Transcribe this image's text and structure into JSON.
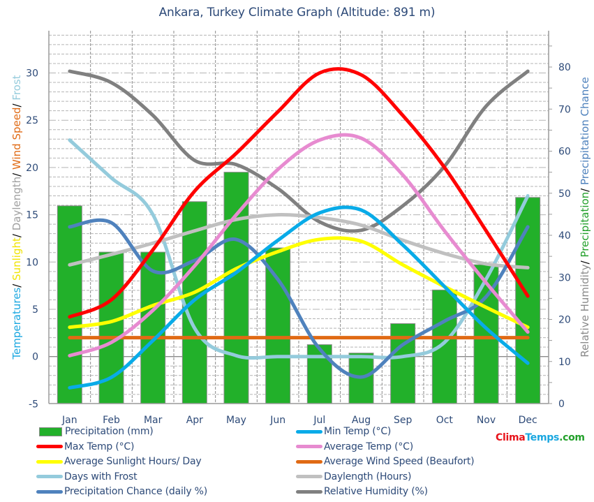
{
  "title": "Ankara, Turkey Climate Graph (Altitude: 891 m)",
  "logo": {
    "part1": "Clima",
    "part2": "Temps",
    "part3": ".com",
    "color1": "#e8141c",
    "color2": "#1aa7e0",
    "color3": "#22a02a"
  },
  "axes": {
    "left_title_parts": [
      {
        "text": "Temperatures",
        "color": "#1aa7e0"
      },
      {
        "text": "/ ",
        "color": "#000000"
      },
      {
        "text": "Sunlight",
        "color": "#f0e400"
      },
      {
        "text": "/ ",
        "color": "#000000"
      },
      {
        "text": "Daylength",
        "color": "#a0a0a0"
      },
      {
        "text": "/ ",
        "color": "#000000"
      },
      {
        "text": "Wind Speed",
        "color": "#e06a14"
      },
      {
        "text": "/ ",
        "color": "#000000"
      },
      {
        "text": "Frost",
        "color": "#94cbdc"
      }
    ],
    "right_title_parts": [
      {
        "text": "Relative Humidity",
        "color": "#8a8a8a"
      },
      {
        "text": "/ ",
        "color": "#000000"
      },
      {
        "text": "Precipitation",
        "color": "#22a02a"
      },
      {
        "text": "/ ",
        "color": "#000000"
      },
      {
        "text": "Precipitation Chance",
        "color": "#4f82bd"
      }
    ],
    "left_ticks": [
      "-5",
      "0",
      "5",
      "10",
      "15",
      "20",
      "25",
      "30"
    ],
    "right_ticks": [
      "0",
      "10",
      "20",
      "30",
      "40",
      "50",
      "60",
      "70",
      "80"
    ]
  },
  "legend": [
    {
      "label": "Precipitation (mm)",
      "color": "#22b02a",
      "type": "bar"
    },
    {
      "label": "Min Temp (°C)",
      "color": "#09abe8",
      "type": "line"
    },
    {
      "label": "Max Temp (°C)",
      "color": "#ff0000",
      "type": "line"
    },
    {
      "label": "Average Temp (°C)",
      "color": "#e78bd0",
      "type": "line"
    },
    {
      "label": "Average Sunlight Hours/ Day",
      "color": "#ffff00",
      "type": "line"
    },
    {
      "label": "Average Wind Speed (Beaufort)",
      "color": "#e06a14",
      "type": "line"
    },
    {
      "label": "Days with Frost",
      "color": "#94cbdc",
      "type": "line"
    },
    {
      "label": "Daylength (Hours)",
      "color": "#c0c0c0",
      "type": "line"
    },
    {
      "label": "Precipitation Chance (daily %)",
      "color": "#4f82bd",
      "type": "line"
    },
    {
      "label": "Relative Humidity (%)",
      "color": "#808080",
      "type": "line"
    }
  ],
  "chart_data": {
    "type": "bar",
    "title": "Ankara, Turkey Climate Graph (Altitude: 891 m)",
    "xlabel": "",
    "ylabel": "Temperatures/ Sunlight/ Daylength/ Wind Speed/ Frost",
    "ylabel_right": "Relative Humidity/ Precipitation/ Precipitation Chance",
    "ylim": [
      -5,
      34.4
    ],
    "ylim_right": [
      0,
      88.6
    ],
    "grid": true,
    "legend_position": "bottom",
    "categories": [
      "Jan",
      "Feb",
      "Mar",
      "Apr",
      "May",
      "Jun",
      "Jul",
      "Aug",
      "Sep",
      "Oct",
      "Nov",
      "Dec"
    ],
    "series": [
      {
        "name": "Precipitation (mm)",
        "type": "bar",
        "axis": "right",
        "color": "#22b02a",
        "values": [
          47,
          36,
          36,
          48,
          55,
          37,
          14,
          12,
          19,
          27,
          33,
          49
        ]
      },
      {
        "name": "Min Temp (°C)",
        "type": "line",
        "axis": "left",
        "color": "#09abe8",
        "values": [
          -3.3,
          -2.2,
          1.7,
          6.0,
          8.9,
          12.3,
          15.2,
          15.5,
          11.8,
          7.4,
          3.0,
          -0.7
        ]
      },
      {
        "name": "Max Temp (°C)",
        "type": "line",
        "axis": "left",
        "color": "#ff0000",
        "values": [
          4.2,
          6.0,
          11.3,
          17.5,
          21.5,
          25.9,
          30.0,
          29.8,
          25.5,
          20.0,
          13.3,
          6.4
        ]
      },
      {
        "name": "Average Temp (°C)",
        "type": "line",
        "axis": "left",
        "color": "#e78bd0",
        "values": [
          0.1,
          1.5,
          4.9,
          9.6,
          15.0,
          19.8,
          22.9,
          23.1,
          19.2,
          13.3,
          7.8,
          2.6
        ]
      },
      {
        "name": "Average Sunlight Hours/ Day",
        "type": "line",
        "axis": "left",
        "color": "#ffff00",
        "values": [
          3.1,
          3.7,
          5.4,
          6.8,
          9.3,
          11.1,
          12.4,
          12.2,
          9.7,
          7.4,
          5.2,
          3.1
        ]
      },
      {
        "name": "Average Wind Speed (Beaufort)",
        "type": "line",
        "axis": "left",
        "color": "#e06a14",
        "values": [
          2,
          2,
          2,
          2,
          2,
          2,
          2,
          2,
          2,
          2,
          2,
          2
        ]
      },
      {
        "name": "Days with Frost",
        "type": "line",
        "axis": "left",
        "color": "#94cbdc",
        "values": [
          22.9,
          18.9,
          15.0,
          3.0,
          0.1,
          0,
          0,
          0,
          0,
          1.5,
          8.2,
          17.0
        ]
      },
      {
        "name": "Daylength (Hours)",
        "type": "line",
        "axis": "left",
        "color": "#c0c0c0",
        "values": [
          9.7,
          10.8,
          12.0,
          13.3,
          14.5,
          15.0,
          14.7,
          13.9,
          12.3,
          10.9,
          9.8,
          9.4
        ]
      },
      {
        "name": "Precipitation Chance (daily %)",
        "type": "line",
        "axis": "right",
        "color": "#4f82bd",
        "values": [
          42,
          43,
          31.5,
          34,
          39,
          29.5,
          13,
          6.3,
          14,
          19.6,
          25.4,
          42
        ]
      },
      {
        "name": "Relative Humidity (%)",
        "type": "line",
        "axis": "right",
        "color": "#808080",
        "values": [
          79,
          76.3,
          68.5,
          57.8,
          56.8,
          51.1,
          43.2,
          41.2,
          47.0,
          56.4,
          70.7,
          79
        ]
      }
    ]
  }
}
